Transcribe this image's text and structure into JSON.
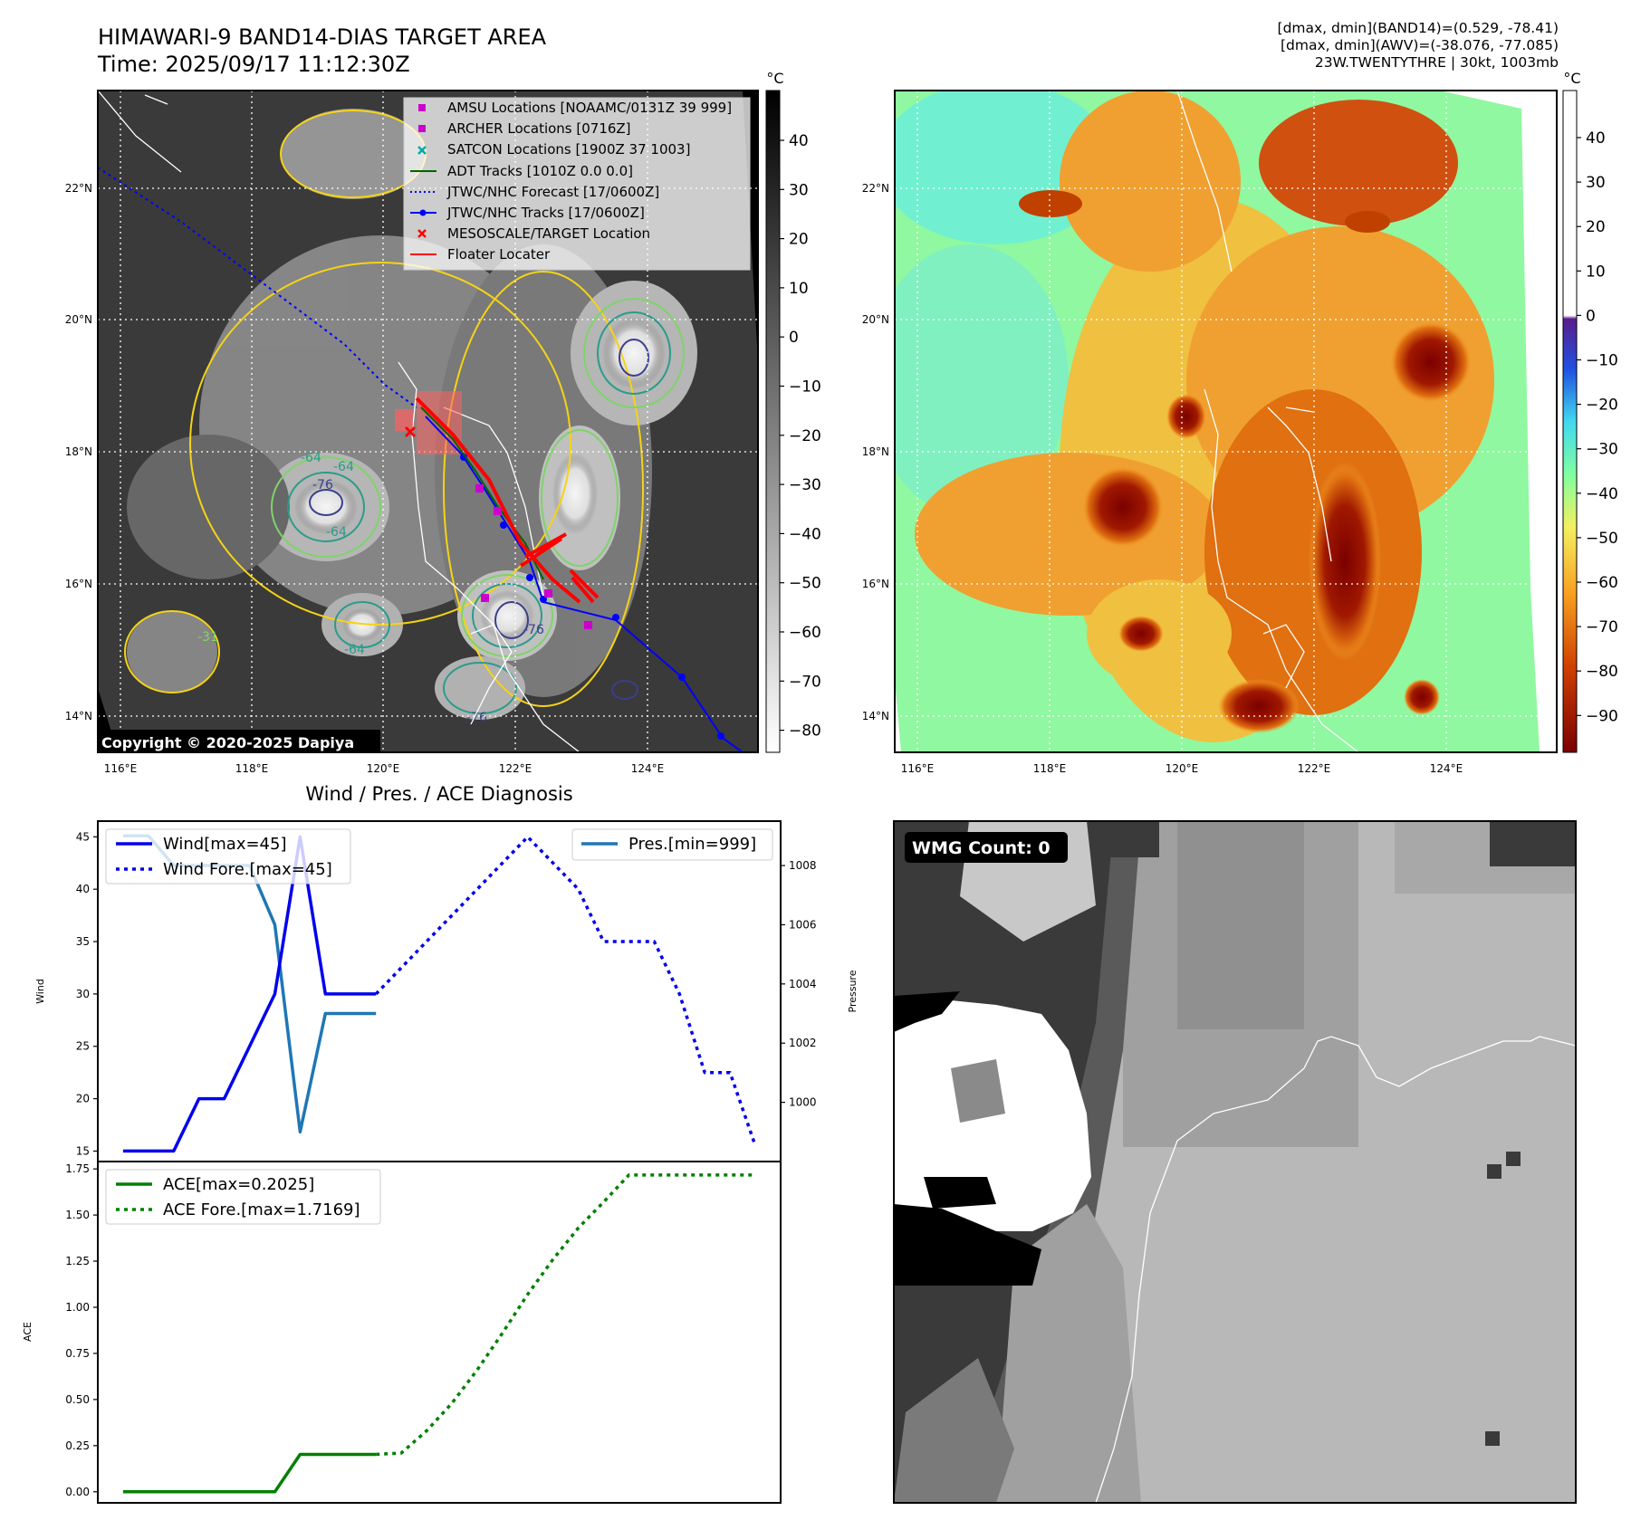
{
  "header": {
    "title": "HIMAWARI-9 BAND14-DIAS TARGET AREA",
    "time": "Time: 2025/09/17 11:12:30Z",
    "info_lines": [
      "[dmax, dmin](BAND14)=(0.529, -78.41)",
      "[dmax, dmin](AWV)=(-38.076, -77.085)",
      "23W.TWENTYTHRE | 30kt, 1003mb"
    ]
  },
  "colors": {
    "wind": "#0000ee",
    "pressure": "#1f77b4",
    "ace": "#008000",
    "jtwc_track": "#0000ff",
    "adt_track": "#006400",
    "amsu": "#cc00cc",
    "satcon": "#00aaaa",
    "mesoscale": "#ff0000",
    "floater": "#ff0000",
    "ir_contour_outer": "#f5d316",
    "ir_contour_mid": "#7fd36a",
    "ir_contour_inner": "#2a9c8a",
    "ir_contour_core": "#3b3f8c"
  },
  "map_ir": {
    "colorbar_unit": "°C",
    "colorbar_ticks": [
      "40",
      "30",
      "20",
      "10",
      "0",
      "−10",
      "−20",
      "−30",
      "−40",
      "−50",
      "−60",
      "−70",
      "−80"
    ],
    "lon_labels": [
      "116°E",
      "118°E",
      "120°E",
      "122°E",
      "124°E"
    ],
    "lat_labels": [
      "22°N",
      "20°N",
      "18°N",
      "16°N",
      "14°N"
    ],
    "copyright": "Copyright © 2020-2025 Dapiya",
    "contour_labels": [
      "-64",
      "-64",
      "-64",
      "-76",
      "-76",
      "-31",
      "-64",
      "-76"
    ],
    "legend": [
      {
        "label": "AMSU Locations [NOAAMC/0131Z 39 999]",
        "marker": "square"
      },
      {
        "label": "ARCHER Locations [0716Z]",
        "marker": "square"
      },
      {
        "label": "SATCON Locations [1900Z 37 1003]",
        "marker": "x"
      },
      {
        "label": "ADT Tracks [1010Z 0.0 0.0]",
        "marker": "line"
      },
      {
        "label": "JTWC/NHC Forecast [17/0600Z]",
        "marker": "dotted"
      },
      {
        "label": "JTWC/NHC Tracks [17/0600Z]",
        "marker": "line-dot"
      },
      {
        "label": "MESOSCALE/TARGET Location",
        "marker": "x-red"
      },
      {
        "label": "Floater Locater",
        "marker": "line-red"
      }
    ]
  },
  "map_awv": {
    "colorbar_unit": "°C",
    "colorbar_ticks": [
      "40",
      "30",
      "20",
      "10",
      "0",
      "−10",
      "−20",
      "−30",
      "−40",
      "−50",
      "−60",
      "−70",
      "−80",
      "−90"
    ],
    "lon_labels": [
      "116°E",
      "118°E",
      "120°E",
      "122°E",
      "124°E"
    ],
    "lat_labels": [
      "22°N",
      "20°N",
      "18°N",
      "16°N",
      "14°N"
    ]
  },
  "wmg": {
    "label": "WMG Count: 0"
  },
  "chart_data": [
    {
      "type": "line",
      "title": "Wind / Pres. / ACE Diagnosis",
      "ylabel": "Wind",
      "ylabel_right": "Pressure",
      "ylim": [
        14,
        46.5
      ],
      "yticks": [
        15,
        20,
        25,
        30,
        35,
        40,
        45
      ],
      "ylim_right": [
        998,
        1009.5
      ],
      "yticks_right": [
        1000,
        1002,
        1004,
        1006,
        1008
      ],
      "xlim": [
        -1,
        26
      ],
      "legend_left": [
        "Wind[max=45]",
        "Wind Fore.[max=45]"
      ],
      "legend_right": [
        "Pres.[min=999]"
      ],
      "series": [
        {
          "name": "Wind[max=45]",
          "style": "solid",
          "color": "#0000ee",
          "x": [
            0,
            1,
            2,
            3,
            4,
            5,
            6,
            7,
            8,
            9,
            10
          ],
          "y": [
            15,
            15,
            15,
            20,
            20,
            25,
            30,
            45,
            30,
            30,
            30
          ]
        },
        {
          "name": "Wind Fore.[max=45]",
          "style": "dotted",
          "color": "#0000ee",
          "x": [
            10,
            11,
            12,
            13,
            14,
            15,
            16,
            17,
            18,
            19,
            20,
            21,
            22,
            23,
            24,
            25
          ],
          "y": [
            30,
            32.5,
            35,
            37.5,
            40,
            42.5,
            45,
            42.5,
            40,
            35,
            35,
            35,
            30,
            22.5,
            22.5,
            15.5
          ]
        },
        {
          "name": "Pres.[min=999]",
          "style": "solid",
          "color": "#1f77b4",
          "axis": "right",
          "x": [
            0,
            1,
            2,
            3,
            4,
            5,
            6,
            7,
            8,
            9,
            10
          ],
          "y": [
            1009,
            1009,
            1008,
            1008,
            1008,
            1008,
            1006,
            999,
            1003,
            1003,
            1003
          ]
        }
      ]
    },
    {
      "type": "line",
      "ylabel": "ACE",
      "ylim": [
        -0.06,
        1.79
      ],
      "yticks": [
        0.0,
        0.25,
        0.5,
        0.75,
        1.0,
        1.25,
        1.5,
        1.75
      ],
      "xlim": [
        -1,
        26
      ],
      "legend": [
        "ACE[max=0.2025]",
        "ACE Fore.[max=1.7169]"
      ],
      "series": [
        {
          "name": "ACE[max=0.2025]",
          "style": "solid",
          "color": "#008000",
          "x": [
            0,
            1,
            2,
            3,
            4,
            5,
            6,
            7,
            8,
            9,
            10
          ],
          "y": [
            0,
            0,
            0,
            0,
            0,
            0,
            0,
            0.2025,
            0.2025,
            0.2025,
            0.2025
          ]
        },
        {
          "name": "ACE Fore.[max=1.7169]",
          "style": "dotted",
          "color": "#008000",
          "x": [
            10,
            11,
            12,
            13,
            14,
            15,
            16,
            17,
            18,
            19,
            20,
            21,
            22,
            23,
            24,
            25
          ],
          "y": [
            0.2025,
            0.21,
            0.33,
            0.48,
            0.66,
            0.86,
            1.07,
            1.26,
            1.43,
            1.57,
            1.7169,
            1.7169,
            1.7169,
            1.7169,
            1.7169,
            1.7169
          ]
        }
      ]
    }
  ]
}
